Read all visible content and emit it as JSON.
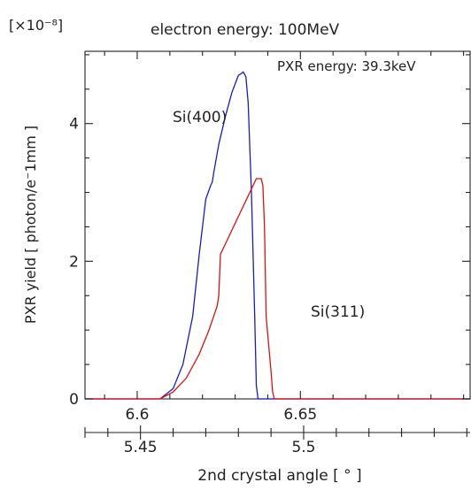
{
  "chart_data": {
    "type": "line",
    "title": "electron energy: 100MeV",
    "subtitle": "PXR energy: 39.3keV",
    "ylabel": "PXR yield [ photon/e⁻1mm ]",
    "xlabel": "2nd crystal angle [ ° ]",
    "y_multiplier": "[×10⁻⁸]",
    "x_range": [
      6.584,
      6.702
    ],
    "y_range": [
      0,
      5.05
    ],
    "x_ticks_major": [
      6.6,
      6.65
    ],
    "x_tick_labels": [
      "6.6",
      "6.65"
    ],
    "y_ticks_major": [
      0,
      2,
      4
    ],
    "y_tick_labels": [
      "0",
      "2",
      "4"
    ],
    "secondary_x_range": [
      5.433,
      5.551
    ],
    "secondary_x_ticks_major": [
      5.45,
      5.5
    ],
    "secondary_x_tick_labels": [
      "5.45",
      "5.5"
    ],
    "grid": false,
    "series": [
      {
        "name": "Si(400)",
        "color": "#1a1acc",
        "x": [
          6.584,
          6.607,
          6.611,
          6.614,
          6.617,
          6.619,
          6.621,
          6.6225,
          6.623,
          6.6235,
          6.625,
          6.627,
          6.629,
          6.631,
          6.632,
          6.6325,
          6.6333,
          6.634,
          6.635,
          6.636,
          6.6365,
          6.637,
          6.702
        ],
        "y": [
          0,
          0,
          0.15,
          0.5,
          1.2,
          2.1,
          2.9,
          3.1,
          3.15,
          3.3,
          3.7,
          4.1,
          4.45,
          4.7,
          4.73,
          4.75,
          4.68,
          4.3,
          3.0,
          1.2,
          0.2,
          0,
          0
        ]
      },
      {
        "name": "Si(311)",
        "color": "#e01010",
        "x": [
          6.584,
          6.607,
          6.611,
          6.615,
          6.619,
          6.622,
          6.6245,
          6.625,
          6.6255,
          6.628,
          6.631,
          6.634,
          6.6365,
          6.638,
          6.6385,
          6.639,
          6.6395,
          6.641,
          6.6415,
          6.642,
          6.702
        ],
        "y": [
          0,
          0,
          0.1,
          0.3,
          0.65,
          1.0,
          1.35,
          1.5,
          2.1,
          2.35,
          2.65,
          2.95,
          3.2,
          3.2,
          3.1,
          2.5,
          1.2,
          0.4,
          0.1,
          0,
          0
        ]
      }
    ]
  }
}
